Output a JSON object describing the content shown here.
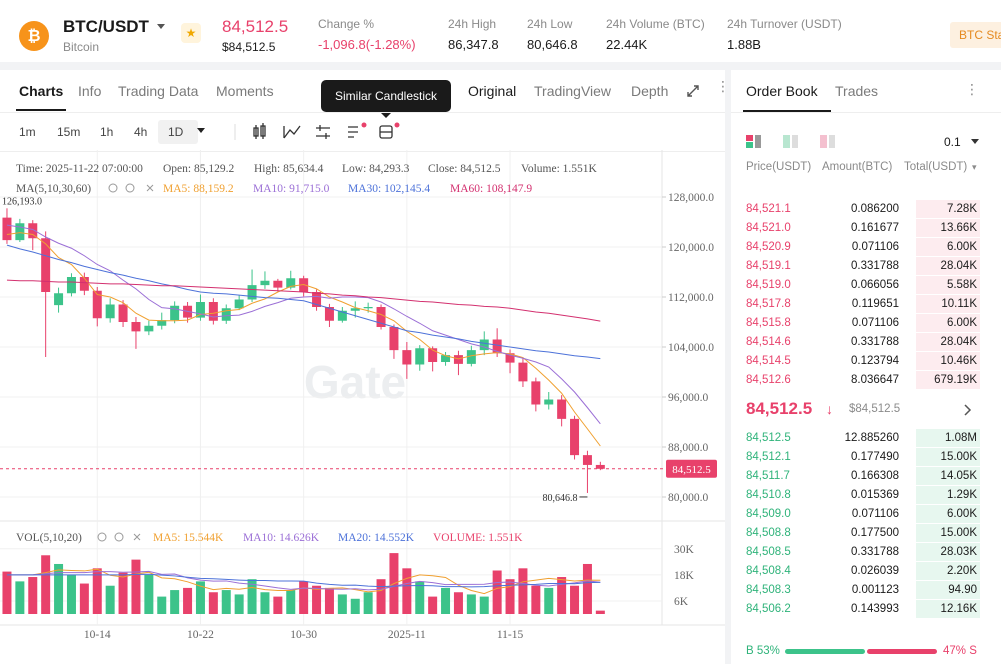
{
  "header": {
    "pair": "BTC/USDT",
    "name": "Bitcoin",
    "price": "84,512.5",
    "price_usd": "$84,512.5",
    "stats": [
      {
        "label": "Change %",
        "value": "-1,096.8(-1.28%)"
      },
      {
        "label": "24h High",
        "value": "86,347.8"
      },
      {
        "label": "24h Low",
        "value": "80,646.8"
      },
      {
        "label": "24h Volume (BTC)",
        "value": "22.44K"
      },
      {
        "label": "24h Turnover (USDT)",
        "value": "1.88B"
      }
    ],
    "button": "BTC Sta"
  },
  "tabs": [
    "Charts",
    "Info",
    "Trading Data",
    "Moments"
  ],
  "tooltip": "Similar Candlestick",
  "views": [
    "Original",
    "TradingView",
    "Depth"
  ],
  "intervals": [
    "1m",
    "15m",
    "1h",
    "4h",
    "1D"
  ],
  "ohlc_info": [
    "Time: 2025-11-22 07:00:00",
    "Open: 85,129.2",
    "High: 85,634.4",
    "Low: 84,293.3",
    "Close: 84,512.5",
    "Volume: 1.551K"
  ],
  "ma_title": "MA(5,10,30,60)",
  "ma_info": [
    "MA5: 88,159.2",
    "MA10: 91,715.0",
    "MA30: 102,145.4",
    "MA60: 108,147.9"
  ],
  "vol_title": "VOL(5,10,20)",
  "vol_info": [
    "MA5: 15.544K",
    "MA10: 14.626K",
    "MA20: 14.552K",
    "VOLUME: 1.551K"
  ],
  "watermark": "Gate",
  "chart_data": {
    "type": "candlestick",
    "grid": true,
    "colors": {
      "up": "#3cc38a",
      "down": "#e8416b"
    },
    "xlim": [
      -0.54,
      50.78
    ],
    "xticks": [
      {
        "value": 7,
        "label": "10-14"
      },
      {
        "value": 15,
        "label": "10-22"
      },
      {
        "value": 23,
        "label": "10-30"
      },
      {
        "value": 31,
        "label": "2025-11"
      },
      {
        "value": 39,
        "label": "11-15"
      }
    ],
    "ylim": [
      76320,
      135520
    ],
    "yticks": [
      {
        "value": 128000,
        "label": "128,000.0"
      },
      {
        "value": 120000,
        "label": "120,000.0"
      },
      {
        "value": 112000,
        "label": "112,000.0"
      },
      {
        "value": 104000,
        "label": "104,000.0"
      },
      {
        "value": 96000,
        "label": "96,000.0"
      },
      {
        "value": 88000,
        "label": "88,000.0"
      },
      {
        "value": 80000,
        "label": "80,000.0"
      }
    ],
    "open": [
      124700,
      121100,
      123800,
      121400,
      110700,
      112600,
      115200,
      113000,
      108600,
      110800,
      108000,
      106500,
      107400,
      108300,
      110600,
      108700,
      111200,
      108200,
      110200,
      111600,
      113900,
      114600,
      113500,
      115000,
      112800,
      110400,
      108200,
      109800,
      110200,
      110400,
      107200,
      103500,
      101200,
      103800,
      101600,
      102700,
      101300,
      103500,
      105200,
      103000,
      101500,
      98500,
      94800,
      95600,
      92500,
      86700,
      85129.2
    ],
    "high": [
      126193,
      124500,
      124300,
      122500,
      113500,
      115800,
      115900,
      113600,
      111800,
      111500,
      108800,
      108200,
      109500,
      111300,
      111200,
      112400,
      111800,
      110800,
      112300,
      116400,
      116100,
      114900,
      116200,
      115400,
      113200,
      110900,
      110400,
      111300,
      111100,
      110800,
      107600,
      104800,
      104300,
      104100,
      103200,
      103400,
      104200,
      106500,
      107000,
      103600,
      102300,
      99100,
      96800,
      96300,
      93000,
      87400,
      85634.4
    ],
    "low": [
      120500,
      120800,
      119500,
      102400,
      109500,
      112100,
      112300,
      107300,
      107900,
      107200,
      103700,
      105900,
      106800,
      107800,
      107900,
      108200,
      107600,
      107700,
      109900,
      111200,
      113300,
      112900,
      113200,
      112100,
      109800,
      107200,
      107900,
      108700,
      109500,
      106800,
      102100,
      98900,
      100200,
      100100,
      101000,
      99500,
      100900,
      102700,
      102400,
      99800,
      97600,
      93700,
      94000,
      91300,
      86000,
      80646.8,
      84293.3
    ],
    "close": [
      121100,
      123800,
      121400,
      112800,
      112600,
      115200,
      113000,
      108600,
      110800,
      108000,
      106500,
      107400,
      108300,
      110600,
      108700,
      111200,
      108200,
      110200,
      111600,
      113900,
      114600,
      113500,
      115000,
      112800,
      110400,
      108200,
      109800,
      110200,
      110400,
      107200,
      103500,
      101200,
      103800,
      101600,
      102700,
      101300,
      103500,
      105200,
      103000,
      101500,
      98500,
      94800,
      95600,
      92500,
      86700,
      85129.2,
      84512.5
    ],
    "last_label": "84,512.5",
    "max_label": "126,193.0",
    "min_label": "80,646.8",
    "ma": [
      {
        "color": "#f0a030",
        "values": [
          122000,
          122300,
          122000,
          120500,
          118300,
          117200,
          115000,
          112400,
          112000,
          111100,
          109400,
          108300,
          108200,
          108200,
          108300,
          109200,
          109400,
          109800,
          110000,
          111000,
          111700,
          112800,
          113700,
          114000,
          113300,
          112000,
          111200,
          110300,
          109800,
          109200,
          108200,
          106500,
          105200,
          103500,
          102600,
          102100,
          102600,
          102900,
          103100,
          102900,
          102300,
          100600,
          98700,
          96600,
          93600,
          90900,
          88159.2
        ]
      },
      {
        "color": "#9b6fd6",
        "values": [
          123500,
          123200,
          122800,
          121600,
          120600,
          119800,
          118600,
          117200,
          116200,
          114700,
          113300,
          111600,
          110300,
          110100,
          109700,
          109300,
          108800,
          109000,
          109100,
          109700,
          110500,
          111100,
          111800,
          112000,
          112100,
          111800,
          112000,
          112000,
          111900,
          111200,
          110100,
          108900,
          107800,
          106600,
          105900,
          105200,
          104500,
          104000,
          103300,
          102700,
          102200,
          101600,
          100800,
          98900,
          96800,
          94300,
          91715.0
        ]
      },
      {
        "color": "#4d72d9",
        "values": [
          120300,
          119700,
          119200,
          118600,
          118000,
          117500,
          116900,
          116400,
          115900,
          115500,
          115000,
          114600,
          114100,
          113700,
          113200,
          112800,
          112600,
          112500,
          112300,
          112100,
          111900,
          111800,
          111600,
          111400,
          110800,
          110200,
          109600,
          109000,
          108400,
          107800,
          107200,
          106600,
          106300,
          105900,
          105600,
          105300,
          104900,
          104600,
          104300,
          104000,
          103700,
          103400,
          103200,
          102900,
          102600,
          102400,
          102145.4
        ]
      },
      {
        "color": "#d3306f",
        "values": [
          114700,
          114600,
          114600,
          114500,
          114400,
          114400,
          114300,
          114200,
          114100,
          114100,
          114000,
          113900,
          113800,
          113800,
          113700,
          113600,
          113500,
          113400,
          113300,
          113200,
          113100,
          113000,
          112900,
          112800,
          112600,
          112500,
          112300,
          112200,
          112000,
          111900,
          111700,
          111500,
          111300,
          111200,
          111000,
          110800,
          110700,
          110500,
          110400,
          110200,
          109900,
          109600,
          109400,
          109100,
          108800,
          108500,
          108147.9
        ]
      }
    ],
    "volume": {
      "ylim": [
        0,
        40
      ],
      "yticks": [
        {
          "value": 30,
          "label": "30K"
        },
        {
          "value": 18,
          "label": "18K"
        },
        {
          "value": 6,
          "label": "6K"
        }
      ],
      "values": [
        19.5,
        15,
        17,
        27,
        23,
        18,
        14,
        21,
        13,
        19,
        25,
        18,
        8,
        11,
        12,
        15,
        10,
        11,
        9,
        16,
        10,
        8,
        11,
        15,
        13,
        12,
        9,
        7,
        10,
        16,
        28,
        21,
        15,
        8,
        12,
        10,
        9,
        8,
        20,
        16,
        21,
        13,
        12,
        17,
        13,
        23,
        1.551
      ],
      "ma": [
        {
          "color": "#f0a030",
          "values": [
            18,
            18,
            18,
            19,
            20.3,
            20,
            19.8,
            20.6,
            17.8,
            17,
            18.4,
            19.2,
            16.6,
            16.2,
            14.8,
            12.8,
            11.2,
            11.8,
            11.4,
            12.2,
            11.2,
            10.8,
            10.8,
            12,
            11.4,
            11.8,
            12,
            11.2,
            10.2,
            10.8,
            14,
            16.4,
            18,
            17.6,
            16.8,
            13.2,
            10.8,
            9.4,
            11.8,
            12.6,
            14.8,
            15.6,
            16.4,
            15.8,
            15.2,
            15.6,
            15.544
          ]
        },
        {
          "color": "#9b6fd6",
          "values": [
            18,
            18,
            18,
            18.5,
            19,
            19,
            19,
            19.5,
            19.5,
            19.2,
            19.3,
            19.6,
            18.2,
            18.4,
            16.6,
            15.6,
            15.1,
            15.2,
            14.2,
            13.7,
            12.9,
            12,
            11.3,
            11.9,
            11.8,
            11.5,
            11.4,
            11.6,
            11.1,
            11.4,
            12.7,
            14,
            15,
            14.4,
            13.5,
            13.6,
            13.6,
            13.7,
            14.5,
            14.7,
            14,
            13.2,
            12.9,
            13.6,
            14.3,
            15.2,
            14.626
          ]
        },
        {
          "color": "#4d72d9",
          "values": [
            18,
            18,
            18,
            18,
            18,
            18,
            18,
            18,
            18,
            18,
            18.2,
            18.3,
            17.9,
            17.5,
            16.9,
            16.4,
            16.2,
            15.9,
            15.6,
            15.4,
            15.4,
            15.2,
            15.2,
            15.1,
            14.2,
            13.6,
            13.2,
            13.3,
            12.8,
            12.6,
            12.8,
            13,
            13.1,
            13,
            12.6,
            12.6,
            12.5,
            12.6,
            13,
            13.2,
            13.4,
            13.6,
            14,
            14,
            13.9,
            14.4,
            14.552
          ]
        }
      ]
    }
  },
  "order_book": {
    "tabs": [
      "Order Book",
      "Trades"
    ],
    "precision": "0.1",
    "columns": [
      "Price(USDT)",
      "Amount(BTC)",
      "Total(USDT)"
    ],
    "asks": [
      [
        "84,521.1",
        "0.086200",
        "7.28K"
      ],
      [
        "84,521.0",
        "0.161677",
        "13.66K"
      ],
      [
        "84,520.9",
        "0.071106",
        "6.00K"
      ],
      [
        "84,519.1",
        "0.331788",
        "28.04K"
      ],
      [
        "84,519.0",
        "0.066056",
        "5.58K"
      ],
      [
        "84,517.8",
        "0.119651",
        "10.11K"
      ],
      [
        "84,515.8",
        "0.071106",
        "6.00K"
      ],
      [
        "84,514.6",
        "0.331788",
        "28.04K"
      ],
      [
        "84,514.5",
        "0.123794",
        "10.46K"
      ],
      [
        "84,512.6",
        "8.036647",
        "679.19K"
      ]
    ],
    "mid": {
      "price": "84,512.5",
      "usd": "$84,512.5"
    },
    "bids": [
      [
        "84,512.5",
        "12.885260",
        "1.08M"
      ],
      [
        "84,512.1",
        "0.177490",
        "15.00K"
      ],
      [
        "84,511.7",
        "0.166308",
        "14.05K"
      ],
      [
        "84,510.8",
        "0.015369",
        "1.29K"
      ],
      [
        "84,509.0",
        "0.071106",
        "6.00K"
      ],
      [
        "84,508.8",
        "0.177500",
        "15.00K"
      ],
      [
        "84,508.5",
        "0.331788",
        "28.03K"
      ],
      [
        "84,508.4",
        "0.026039",
        "2.20K"
      ],
      [
        "84,508.3",
        "0.001123",
        "94.90"
      ],
      [
        "84,506.2",
        "0.143993",
        "12.16K"
      ]
    ],
    "buy": "B 53%",
    "sell": "47% S",
    "buy_share": 53,
    "sell_share": 47
  }
}
